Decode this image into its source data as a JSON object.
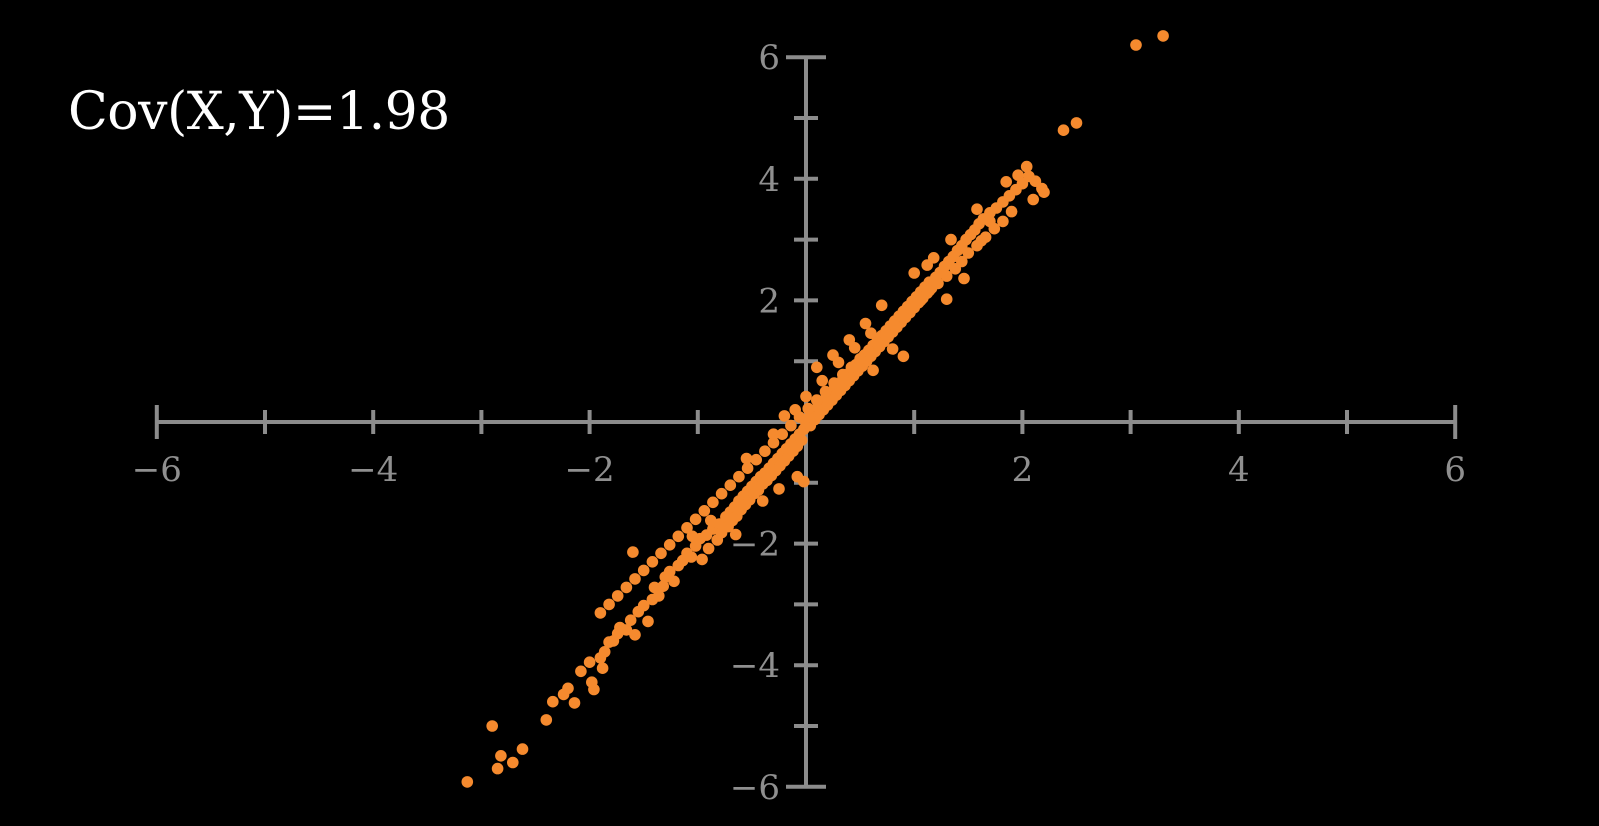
{
  "annotation": {
    "text": "Cov(X,Y)=1.98"
  },
  "colors": {
    "background": "#000000",
    "axis": "#8c8c8c",
    "tick_label": "#8f8f8f",
    "point": "#f58a2e",
    "annotation": "#ffffff"
  },
  "chart_data": {
    "type": "scatter",
    "title": "",
    "xlabel": "",
    "ylabel": "",
    "xlim": [
      -6,
      6
    ],
    "ylim": [
      -6,
      6
    ],
    "grid": false,
    "legend": "none",
    "x_ticks": [
      -6,
      -4,
      -2,
      2,
      4,
      6
    ],
    "y_ticks": [
      6,
      4,
      2,
      -2,
      -4,
      -6
    ],
    "x_tick_labels": [
      "−6",
      "−4",
      "−2",
      "2",
      "4",
      "6"
    ],
    "y_tick_labels": [
      "6",
      "4",
      "2",
      "−2",
      "−4",
      "−6"
    ],
    "annotation": "Cov(X,Y)=1.98",
    "series": [
      {
        "points": [
          [
            -3.13,
            -5.92
          ],
          [
            -2.9,
            -5.0
          ],
          [
            -2.82,
            -5.49
          ],
          [
            -2.85,
            -5.7
          ],
          [
            -2.62,
            -5.38
          ],
          [
            -2.71,
            -5.6
          ],
          [
            -2.4,
            -4.9
          ],
          [
            -2.34,
            -4.6
          ],
          [
            -2.24,
            -4.48
          ],
          [
            -2.2,
            -4.38
          ],
          [
            -2.14,
            -4.62
          ],
          [
            -2.08,
            -4.1
          ],
          [
            -2.0,
            -3.95
          ],
          [
            -1.98,
            -4.28
          ],
          [
            -1.96,
            -4.4
          ],
          [
            -1.9,
            -3.88
          ],
          [
            -1.88,
            -4.05
          ],
          [
            -1.86,
            -3.78
          ],
          [
            -1.82,
            -3.62
          ],
          [
            -1.78,
            -3.6
          ],
          [
            -1.74,
            -3.48
          ],
          [
            -1.72,
            -3.38
          ],
          [
            -1.66,
            -3.42
          ],
          [
            -1.62,
            -3.26
          ],
          [
            -1.58,
            -3.5
          ],
          [
            -1.55,
            -3.12
          ],
          [
            -1.5,
            -3.02
          ],
          [
            -1.46,
            -3.28
          ],
          [
            -1.42,
            -2.92
          ],
          [
            -1.4,
            -2.72
          ],
          [
            -1.36,
            -2.86
          ],
          [
            -1.32,
            -2.7
          ],
          [
            -1.3,
            -2.55
          ],
          [
            -1.26,
            -2.46
          ],
          [
            -1.22,
            -2.62
          ],
          [
            -1.18,
            -2.36
          ],
          [
            -1.6,
            -2.14
          ],
          [
            -1.14,
            -2.28
          ],
          [
            -1.1,
            -2.16
          ],
          [
            -1.06,
            -2.22
          ],
          [
            -1.02,
            -2.04
          ],
          [
            -0.98,
            -1.92
          ],
          [
            -0.96,
            -2.26
          ],
          [
            -0.92,
            -1.86
          ],
          [
            -0.9,
            -2.08
          ],
          [
            -0.86,
            -1.76
          ],
          [
            -0.82,
            -1.94
          ],
          [
            -0.8,
            -1.68
          ],
          [
            -0.78,
            -1.82
          ],
          [
            -0.74,
            -1.56
          ],
          [
            -0.72,
            -1.72
          ],
          [
            -0.7,
            -1.48
          ],
          [
            -0.68,
            -1.62
          ],
          [
            -0.66,
            -1.4
          ],
          [
            -0.64,
            -1.55
          ],
          [
            -0.62,
            -1.3
          ],
          [
            -0.6,
            -1.44
          ],
          [
            -0.58,
            -1.22
          ],
          [
            -0.56,
            -1.36
          ],
          [
            -0.54,
            -1.14
          ],
          [
            -0.52,
            -1.28
          ],
          [
            -0.5,
            -1.06
          ],
          [
            -0.48,
            -1.18
          ],
          [
            -0.46,
            -0.98
          ],
          [
            -0.44,
            -1.12
          ],
          [
            -0.42,
            -0.9
          ],
          [
            -0.4,
            -1.02
          ],
          [
            -0.38,
            -0.84
          ],
          [
            -0.36,
            -0.96
          ],
          [
            -0.34,
            -0.76
          ],
          [
            -0.32,
            -0.88
          ],
          [
            -0.3,
            -0.68
          ],
          [
            -0.28,
            -0.8
          ],
          [
            -0.26,
            -0.6
          ],
          [
            -0.24,
            -0.72
          ],
          [
            -0.22,
            -0.52
          ],
          [
            -0.2,
            -0.64
          ],
          [
            -0.18,
            -0.44
          ],
          [
            -0.16,
            -0.56
          ],
          [
            -0.14,
            -0.36
          ],
          [
            -0.12,
            -0.48
          ],
          [
            -0.1,
            -0.28
          ],
          [
            -0.08,
            -0.4
          ],
          [
            -0.06,
            -0.2
          ],
          [
            -0.04,
            -0.3
          ],
          [
            -0.02,
            -0.12
          ],
          [
            0.0,
            -0.02
          ],
          [
            0.02,
            0.06
          ],
          [
            0.04,
            -0.06
          ],
          [
            0.06,
            0.14
          ],
          [
            0.08,
            0.04
          ],
          [
            0.1,
            0.22
          ],
          [
            0.12,
            0.12
          ],
          [
            0.14,
            0.3
          ],
          [
            0.16,
            0.2
          ],
          [
            0.18,
            0.38
          ],
          [
            0.2,
            0.28
          ],
          [
            0.22,
            0.46
          ],
          [
            0.24,
            0.36
          ],
          [
            0.26,
            0.54
          ],
          [
            0.28,
            0.44
          ],
          [
            0.3,
            0.62
          ],
          [
            0.32,
            0.52
          ],
          [
            0.34,
            0.7
          ],
          [
            0.36,
            0.6
          ],
          [
            0.38,
            0.78
          ],
          [
            0.4,
            0.68
          ],
          [
            0.42,
            0.86
          ],
          [
            0.44,
            0.76
          ],
          [
            0.46,
            0.94
          ],
          [
            0.48,
            0.84
          ],
          [
            0.5,
            1.02
          ],
          [
            0.52,
            0.92
          ],
          [
            0.54,
            1.1
          ],
          [
            0.56,
            1.0
          ],
          [
            0.58,
            1.18
          ],
          [
            0.6,
            1.08
          ],
          [
            0.62,
            1.26
          ],
          [
            0.64,
            1.16
          ],
          [
            0.66,
            1.34
          ],
          [
            0.68,
            1.24
          ],
          [
            0.7,
            1.42
          ],
          [
            0.72,
            1.32
          ],
          [
            0.74,
            1.5
          ],
          [
            0.76,
            1.4
          ],
          [
            0.78,
            1.58
          ],
          [
            0.8,
            1.48
          ],
          [
            0.82,
            1.66
          ],
          [
            0.84,
            1.56
          ],
          [
            0.86,
            1.74
          ],
          [
            0.88,
            1.64
          ],
          [
            0.9,
            1.82
          ],
          [
            0.92,
            1.72
          ],
          [
            0.94,
            1.9
          ],
          [
            0.96,
            1.8
          ],
          [
            0.98,
            1.98
          ],
          [
            1.0,
            1.88
          ],
          [
            1.02,
            2.06
          ],
          [
            1.04,
            1.96
          ],
          [
            1.06,
            2.14
          ],
          [
            1.08,
            2.04
          ],
          [
            1.1,
            2.22
          ],
          [
            1.12,
            2.12
          ],
          [
            1.14,
            2.3
          ],
          [
            1.16,
            2.2
          ],
          [
            1.2,
            2.38
          ],
          [
            1.24,
            2.46
          ],
          [
            1.28,
            2.56
          ],
          [
            1.32,
            2.64
          ],
          [
            1.36,
            2.72
          ],
          [
            1.4,
            2.82
          ],
          [
            1.44,
            2.9
          ],
          [
            1.48,
            3.0
          ],
          [
            1.52,
            3.08
          ],
          [
            1.56,
            3.16
          ],
          [
            1.6,
            3.26
          ],
          [
            1.64,
            3.34
          ],
          [
            1.7,
            3.44
          ],
          [
            1.76,
            3.52
          ],
          [
            1.82,
            3.62
          ],
          [
            1.88,
            3.72
          ],
          [
            1.94,
            3.82
          ],
          [
            2.0,
            3.92
          ],
          [
            2.06,
            4.04
          ],
          [
            2.12,
            3.96
          ],
          [
            2.18,
            3.84
          ],
          [
            2.04,
            4.2
          ],
          [
            1.96,
            4.06
          ],
          [
            1.9,
            3.46
          ],
          [
            1.82,
            3.3
          ],
          [
            1.74,
            3.18
          ],
          [
            1.66,
            3.04
          ],
          [
            1.58,
            2.9
          ],
          [
            1.5,
            2.78
          ],
          [
            1.44,
            2.64
          ],
          [
            1.38,
            2.52
          ],
          [
            1.3,
            2.4
          ],
          [
            1.22,
            2.28
          ],
          [
            1.14,
            2.16
          ],
          [
            1.06,
            2.0
          ],
          [
            0.98,
            1.86
          ],
          [
            0.9,
            1.72
          ],
          [
            0.82,
            1.58
          ],
          [
            0.74,
            1.44
          ],
          [
            0.66,
            1.3
          ],
          [
            0.58,
            1.16
          ],
          [
            0.5,
            1.04
          ],
          [
            0.42,
            0.9
          ],
          [
            0.34,
            0.78
          ],
          [
            0.26,
            0.64
          ],
          [
            0.18,
            0.5
          ],
          [
            0.1,
            0.36
          ],
          [
            0.02,
            0.22
          ],
          [
            -0.06,
            0.08
          ],
          [
            -0.14,
            -0.06
          ],
          [
            -0.22,
            -0.2
          ],
          [
            -0.3,
            -0.34
          ],
          [
            -0.38,
            -0.48
          ],
          [
            -0.46,
            -0.62
          ],
          [
            -0.54,
            -0.76
          ],
          [
            -0.62,
            -0.9
          ],
          [
            -0.7,
            -1.04
          ],
          [
            -0.78,
            -1.18
          ],
          [
            -0.86,
            -1.32
          ],
          [
            -0.94,
            -1.46
          ],
          [
            -1.02,
            -1.6
          ],
          [
            -1.1,
            -1.74
          ],
          [
            -1.18,
            -1.88
          ],
          [
            -1.26,
            -2.02
          ],
          [
            -1.34,
            -2.16
          ],
          [
            -1.42,
            -2.3
          ],
          [
            -1.5,
            -2.44
          ],
          [
            -1.58,
            -2.58
          ],
          [
            -1.66,
            -2.72
          ],
          [
            -1.74,
            -2.86
          ],
          [
            -1.82,
            -3.0
          ],
          [
            -1.9,
            -3.14
          ],
          [
            0.9,
            1.08
          ],
          [
            1.18,
            2.7
          ],
          [
            1.34,
            3.0
          ],
          [
            1.46,
            2.36
          ],
          [
            1.62,
            2.98
          ],
          [
            1.3,
            2.02
          ],
          [
            0.7,
            1.92
          ],
          [
            0.55,
            1.62
          ],
          [
            0.4,
            1.35
          ],
          [
            -0.08,
            -0.9
          ],
          [
            -0.25,
            -1.1
          ],
          [
            -0.4,
            -1.3
          ],
          [
            -0.65,
            -1.85
          ],
          [
            -0.88,
            -1.62
          ],
          [
            -1.05,
            -1.88
          ],
          [
            -0.55,
            -0.6
          ],
          [
            -0.3,
            -0.2
          ],
          [
            0.1,
            0.9
          ],
          [
            0.25,
            1.1
          ],
          [
            0.62,
            0.85
          ],
          [
            0.8,
            1.2
          ],
          [
            1.0,
            2.45
          ],
          [
            1.12,
            2.58
          ],
          [
            1.58,
            3.5
          ],
          [
            1.7,
            3.3
          ],
          [
            1.85,
            3.95
          ],
          [
            2.2,
            3.78
          ],
          [
            2.1,
            3.66
          ],
          [
            -0.2,
            0.1
          ],
          [
            -0.1,
            0.2
          ],
          [
            0.0,
            0.42
          ],
          [
            0.15,
            0.68
          ],
          [
            0.3,
            0.98
          ],
          [
            0.45,
            1.22
          ],
          [
            0.6,
            1.46
          ],
          [
            -0.02,
            -0.98
          ],
          [
            2.38,
            4.8
          ],
          [
            2.5,
            4.92
          ],
          [
            3.05,
            6.2
          ],
          [
            3.3,
            6.35
          ]
        ]
      }
    ]
  }
}
